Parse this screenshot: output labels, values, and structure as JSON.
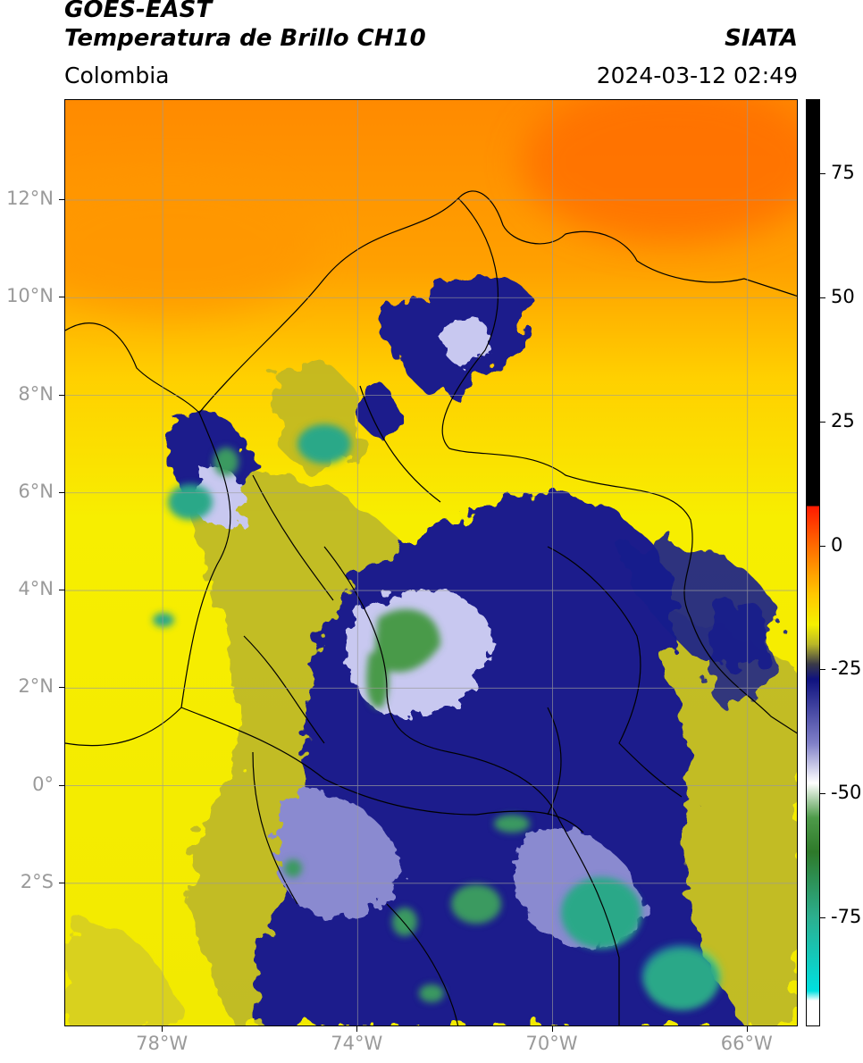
{
  "header": {
    "title_line1": "GOES-EAST",
    "title_line2": "Temperatura de Brillo CH10",
    "region": "Colombia",
    "agency": "SIATA",
    "datetime": "2024-03-12 02:49"
  },
  "map": {
    "lat_range": [
      -4.95,
      14.05
    ],
    "lon_range": [
      -80.0,
      -64.95
    ],
    "lat_ticks": [
      {
        "value": 12,
        "label": "12°N"
      },
      {
        "value": 10,
        "label": "10°N"
      },
      {
        "value": 8,
        "label": "8°N"
      },
      {
        "value": 6,
        "label": "6°N"
      },
      {
        "value": 4,
        "label": "4°N"
      },
      {
        "value": 2,
        "label": "2°N"
      },
      {
        "value": 0,
        "label": "0°"
      },
      {
        "value": -2,
        "label": "2°S"
      }
    ],
    "lon_ticks": [
      {
        "value": -78,
        "label": "78°W"
      },
      {
        "value": -74,
        "label": "74°W"
      },
      {
        "value": -70,
        "label": "70°W"
      },
      {
        "value": -66,
        "label": "66°W"
      }
    ],
    "gridlines": true
  },
  "colorbar": {
    "range": [
      -97,
      90
    ],
    "ticks": [
      {
        "value": 75,
        "label": "75"
      },
      {
        "value": 50,
        "label": "50"
      },
      {
        "value": 25,
        "label": "25"
      },
      {
        "value": 0,
        "label": "0"
      },
      {
        "value": -25,
        "label": "-25"
      },
      {
        "value": -50,
        "label": "-50"
      },
      {
        "value": -75,
        "label": "-75"
      }
    ],
    "stops": [
      {
        "value": 90,
        "color": "#000000"
      },
      {
        "value": 8,
        "color": "#000000"
      },
      {
        "value": 7.9,
        "color": "#ff1a00"
      },
      {
        "value": 0,
        "color": "#ff6a00"
      },
      {
        "value": -10,
        "color": "#ffc800"
      },
      {
        "value": -16,
        "color": "#f5f000"
      },
      {
        "value": -20,
        "color": "#b9b728"
      },
      {
        "value": -24,
        "color": "#3a3a48"
      },
      {
        "value": -27,
        "color": "#0f127f"
      },
      {
        "value": -40,
        "color": "#8080c8"
      },
      {
        "value": -48,
        "color": "#ffffff"
      },
      {
        "value": -55,
        "color": "#4e9b4a"
      },
      {
        "value": -62,
        "color": "#2e7a2a"
      },
      {
        "value": -75,
        "color": "#2cae8e"
      },
      {
        "value": -90,
        "color": "#00e0e0"
      },
      {
        "value": -92,
        "color": "#ffffff"
      },
      {
        "value": -97,
        "color": "#ffffff"
      }
    ]
  }
}
